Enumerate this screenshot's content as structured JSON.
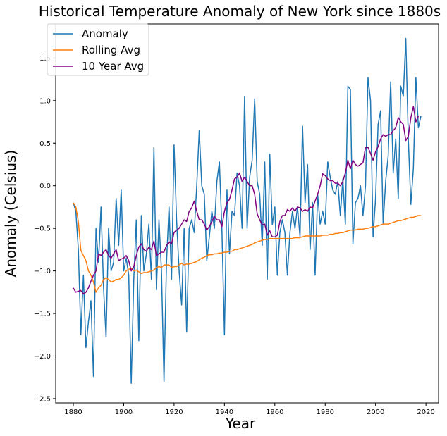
{
  "chart_data": {
    "type": "line",
    "title": "Historical Temperature Anomaly of New York since 1880s",
    "xlabel": "Year",
    "ylabel": "Anomaly (Celsius)",
    "xlim": [
      1873,
      2025
    ],
    "ylim": [
      -2.55,
      1.9
    ],
    "xticks": [
      1880,
      1900,
      1920,
      1940,
      1960,
      1980,
      2000,
      2020
    ],
    "yticks": [
      -2.5,
      -2.0,
      -1.5,
      -1.0,
      -0.5,
      0.0,
      0.5,
      1.0,
      1.5
    ],
    "yticklabels": [
      "−2.5",
      "−2.0",
      "−1.5",
      "−1.0",
      "−0.5",
      "0.0",
      "0.5",
      "1.0",
      "1.5"
    ],
    "grid": false,
    "legend_position": "top-left",
    "x_start": 1880,
    "series": [
      {
        "name": "Anomaly",
        "color": "#1f77b4",
        "values": [
          -0.2,
          -0.3,
          -0.75,
          -1.75,
          -1.05,
          -1.9,
          -1.6,
          -1.35,
          -2.24,
          -0.5,
          -0.9,
          -0.25,
          -1.2,
          -1.78,
          -0.5,
          -1.0,
          -0.9,
          -0.15,
          -0.7,
          -0.05,
          -1.0,
          -0.85,
          -1.05,
          -2.32,
          -1.1,
          -0.4,
          -1.82,
          -0.35,
          -1.0,
          -0.8,
          -0.45,
          -1.1,
          0.45,
          -1.22,
          -0.4,
          -1.0,
          -2.3,
          -0.9,
          -0.25,
          -1.1,
          0.48,
          -0.4,
          -1.0,
          -1.4,
          -0.5,
          -1.72,
          -0.5,
          -0.4,
          -0.55,
          0.0,
          0.65,
          0.0,
          -0.1,
          -0.88,
          -0.6,
          -0.3,
          -0.5,
          0.05,
          0.28,
          -0.52,
          -1.75,
          -0.05,
          -0.8,
          -0.3,
          -0.35,
          0.15,
          0.0,
          -0.5,
          1.05,
          -0.5,
          0.1,
          0.3,
          1.02,
          0.05,
          -0.1,
          -0.7,
          0.28,
          -1.1,
          0.37,
          -0.46,
          -0.25,
          -1.05,
          -0.55,
          -0.4,
          -0.55,
          -1.05,
          -0.55,
          -0.3,
          -0.5,
          -0.25,
          -0.6,
          0.7,
          -0.2,
          0.25,
          -0.75,
          -0.2,
          -1.05,
          -0.1,
          -0.45,
          -0.3,
          -0.45,
          0.28,
          0.1,
          -0.05,
          -0.1,
          0.05,
          -0.35,
          0.08,
          -0.45,
          1.17,
          1.13,
          -0.68,
          -0.2,
          -0.15,
          0.0,
          -0.35,
          0.0,
          1.27,
          1.0,
          -0.6,
          -0.15,
          0.72,
          0.88,
          -0.45,
          0.05,
          0.35,
          1.22,
          0.15,
          0.55,
          -0.15,
          1.17,
          1.05,
          1.73,
          0.55,
          -0.22,
          0.2,
          1.27,
          0.68,
          0.82
        ]
      },
      {
        "name": "Rolling Avg",
        "color": "#ff7f0e",
        "values": [
          -0.2,
          -0.25,
          -0.42,
          -0.76,
          -0.82,
          -0.88,
          -1.0,
          -1.05,
          -1.13,
          -1.25,
          -1.2,
          -1.17,
          -1.1,
          -1.08,
          -1.1,
          -1.13,
          -1.12,
          -1.1,
          -1.1,
          -1.08,
          -1.05,
          -1.0,
          -0.98,
          -0.97,
          -1.0,
          -0.99,
          -1.01,
          -1.03,
          -1.02,
          -1.02,
          -1.01,
          -1.0,
          -0.99,
          -0.96,
          -0.95,
          -0.96,
          -0.93,
          -0.93,
          -0.93,
          -0.96,
          -0.95,
          -0.95,
          -0.93,
          -0.91,
          -0.93,
          -0.92,
          -0.92,
          -0.91,
          -0.9,
          -0.89,
          -0.87,
          -0.85,
          -0.84,
          -0.82,
          -0.81,
          -0.81,
          -0.8,
          -0.8,
          -0.79,
          -0.79,
          -0.78,
          -0.78,
          -0.77,
          -0.77,
          -0.75,
          -0.75,
          -0.74,
          -0.73,
          -0.72,
          -0.71,
          -0.7,
          -0.69,
          -0.67,
          -0.66,
          -0.65,
          -0.64,
          -0.63,
          -0.63,
          -0.62,
          -0.62,
          -0.62,
          -0.62,
          -0.62,
          -0.62,
          -0.62,
          -0.62,
          -0.62,
          -0.62,
          -0.61,
          -0.61,
          -0.61,
          -0.6,
          -0.59,
          -0.59,
          -0.59,
          -0.59,
          -0.59,
          -0.59,
          -0.59,
          -0.58,
          -0.58,
          -0.58,
          -0.57,
          -0.57,
          -0.56,
          -0.56,
          -0.55,
          -0.55,
          -0.54,
          -0.53,
          -0.52,
          -0.52,
          -0.52,
          -0.51,
          -0.51,
          -0.51,
          -0.5,
          -0.5,
          -0.49,
          -0.48,
          -0.48,
          -0.47,
          -0.46,
          -0.45,
          -0.45,
          -0.45,
          -0.44,
          -0.43,
          -0.42,
          -0.41,
          -0.41,
          -0.4,
          -0.39,
          -0.38,
          -0.37,
          -0.37,
          -0.36,
          -0.35,
          -0.35
        ]
      },
      {
        "name": "10 Year Avg",
        "color": "#800080",
        "values": [
          -1.2,
          -1.25,
          -1.24,
          -1.23,
          -1.27,
          -1.25,
          -1.2,
          -1.12,
          -1.05,
          -1.0,
          -0.8,
          -0.82,
          -0.78,
          -0.75,
          -0.82,
          -0.85,
          -0.8,
          -0.75,
          -0.88,
          -0.86,
          -0.85,
          -0.82,
          -0.88,
          -1.0,
          -0.95,
          -0.82,
          -0.72,
          -0.68,
          -0.75,
          -0.77,
          -0.72,
          -0.75,
          -0.65,
          -0.82,
          -0.8,
          -0.78,
          -0.78,
          -0.7,
          -0.66,
          -0.68,
          -0.55,
          -0.52,
          -0.5,
          -0.45,
          -0.4,
          -0.42,
          -0.3,
          -0.26,
          -0.18,
          -0.3,
          -0.4,
          -0.4,
          -0.45,
          -0.52,
          -0.48,
          -0.42,
          -0.36,
          -0.4,
          -0.4,
          -0.48,
          -0.3,
          -0.2,
          -0.16,
          -0.05,
          0.08,
          0.1,
          0.15,
          0.05,
          0.1,
          0.05,
          0.0,
          0.0,
          -0.1,
          -0.33,
          -0.4,
          -0.46,
          -0.45,
          -0.58,
          -0.53,
          -0.6,
          -0.6,
          -0.58,
          -0.42,
          -0.35,
          -0.35,
          -0.28,
          -0.3,
          -0.26,
          -0.3,
          -0.25,
          -0.26,
          -0.3,
          -0.28,
          -0.3,
          -0.25,
          -0.26,
          -0.18,
          -0.1,
          0.0,
          0.14,
          0.12,
          0.08,
          0.06,
          0.06,
          0.03,
          0.03,
          0.0,
          0.05,
          0.15,
          0.3,
          0.2,
          0.3,
          0.25,
          0.23,
          0.25,
          0.27,
          0.45,
          0.45,
          0.38,
          0.3,
          0.4,
          0.46,
          0.55,
          0.6,
          0.58,
          0.6,
          0.6,
          0.65,
          0.68,
          0.8,
          0.75,
          0.72,
          0.53,
          0.58,
          0.8,
          0.93,
          0.75,
          0.82
        ]
      }
    ]
  }
}
